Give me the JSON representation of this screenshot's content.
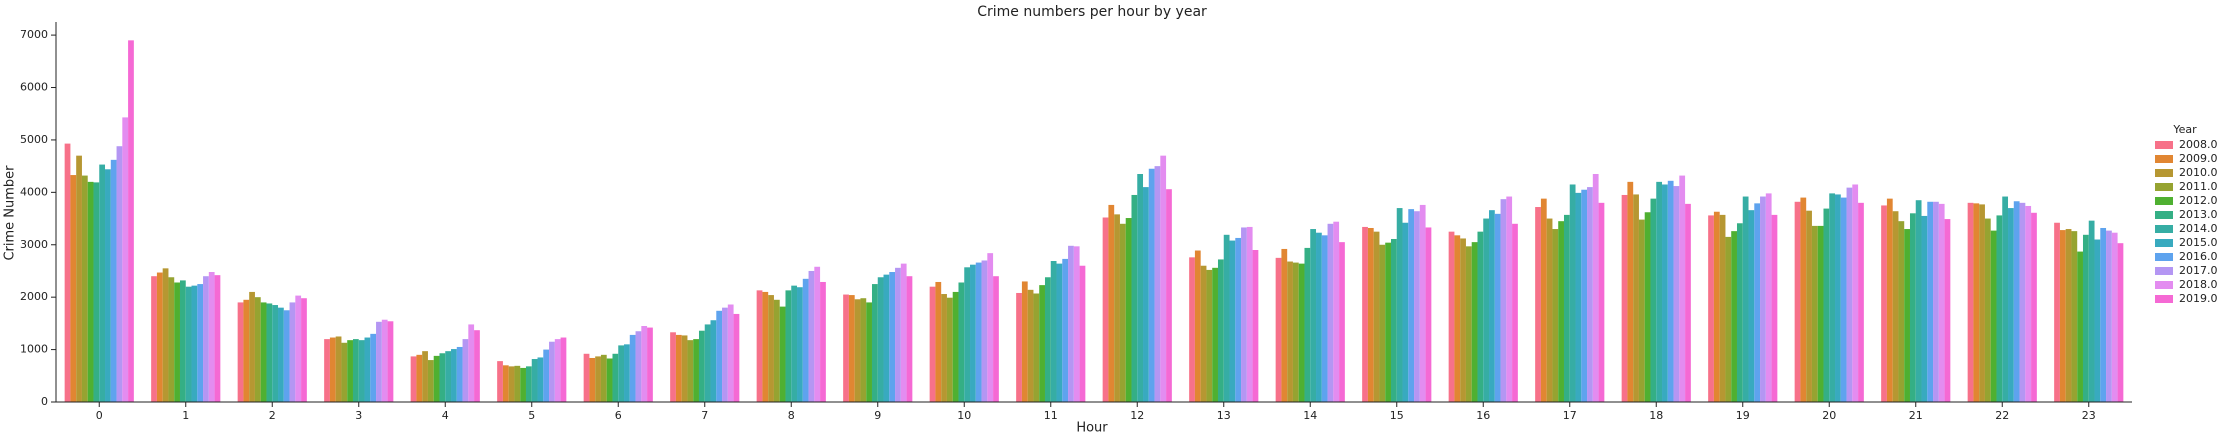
{
  "chart_data": {
    "type": "bar",
    "title": "Crime numbers per hour by year",
    "x_label": "Hour",
    "y_label": "Crime Number",
    "legend_title": "Year",
    "legend_position": "right",
    "categories": [
      "0",
      "1",
      "2",
      "3",
      "4",
      "5",
      "6",
      "7",
      "8",
      "9",
      "10",
      "11",
      "12",
      "13",
      "14",
      "15",
      "16",
      "17",
      "18",
      "19",
      "20",
      "21",
      "22",
      "23"
    ],
    "ylim": [
      0,
      7250
    ],
    "yticks": [
      0,
      1000,
      2000,
      3000,
      4000,
      5000,
      6000,
      7000
    ],
    "series": [
      {
        "name": "2008.0",
        "color": "#f77189",
        "values": [
          4930,
          2400,
          1900,
          1200,
          870,
          780,
          920,
          1330,
          2130,
          2050,
          2200,
          2080,
          3520,
          2760,
          2750,
          3340,
          3250,
          3720,
          3950,
          3560,
          3820,
          3750,
          3800,
          3420
        ]
      },
      {
        "name": "2009.0",
        "color": "#e18632",
        "values": [
          4330,
          2470,
          1950,
          1230,
          900,
          700,
          840,
          1280,
          2100,
          2040,
          2290,
          2300,
          3760,
          2890,
          2920,
          3320,
          3180,
          3880,
          4200,
          3630,
          3900,
          3880,
          3790,
          3280
        ]
      },
      {
        "name": "2010.0",
        "color": "#b69732",
        "values": [
          4700,
          2550,
          2100,
          1250,
          970,
          680,
          870,
          1270,
          2040,
          1960,
          2060,
          2140,
          3580,
          2600,
          2680,
          3250,
          3120,
          3500,
          3960,
          3570,
          3650,
          3640,
          3770,
          3300
        ]
      },
      {
        "name": "2011.0",
        "color": "#96a331",
        "values": [
          4320,
          2380,
          2000,
          1130,
          800,
          690,
          900,
          1180,
          1950,
          1980,
          1990,
          2070,
          3400,
          2520,
          2660,
          3000,
          2970,
          3300,
          3480,
          3150,
          3360,
          3450,
          3500,
          3260
        ]
      },
      {
        "name": "2012.0",
        "color": "#4fb031",
        "values": [
          4200,
          2280,
          1900,
          1180,
          880,
          650,
          830,
          1200,
          1820,
          1900,
          2100,
          2230,
          3510,
          2560,
          2640,
          3040,
          3050,
          3450,
          3620,
          3260,
          3360,
          3300,
          3270,
          2870
        ]
      },
      {
        "name": "2013.0",
        "color": "#34af85",
        "values": [
          4190,
          2320,
          1880,
          1200,
          930,
          680,
          920,
          1360,
          2130,
          2250,
          2280,
          2380,
          3950,
          2720,
          2940,
          3110,
          3250,
          3570,
          3880,
          3410,
          3690,
          3600,
          3560,
          3190
        ]
      },
      {
        "name": "2014.0",
        "color": "#36ada4",
        "values": [
          4530,
          2200,
          1850,
          1180,
          970,
          820,
          1080,
          1480,
          2220,
          2380,
          2570,
          2690,
          4350,
          3190,
          3300,
          3700,
          3500,
          4150,
          4200,
          3920,
          3980,
          3850,
          3920,
          3460
        ]
      },
      {
        "name": "2015.0",
        "color": "#38aabf",
        "values": [
          4440,
          2220,
          1800,
          1230,
          1010,
          850,
          1100,
          1560,
          2190,
          2430,
          2620,
          2640,
          4100,
          3080,
          3230,
          3420,
          3660,
          3990,
          4150,
          3660,
          3960,
          3550,
          3700,
          3100
        ]
      },
      {
        "name": "2016.0",
        "color": "#5ea3ee",
        "values": [
          4620,
          2250,
          1750,
          1300,
          1050,
          1000,
          1280,
          1740,
          2350,
          2480,
          2660,
          2730,
          4450,
          3130,
          3180,
          3680,
          3590,
          4050,
          4220,
          3790,
          3900,
          3820,
          3830,
          3320
        ]
      },
      {
        "name": "2017.0",
        "color": "#b496f3",
        "values": [
          4880,
          2400,
          1900,
          1530,
          1200,
          1150,
          1350,
          1800,
          2500,
          2560,
          2700,
          2980,
          4500,
          3330,
          3400,
          3640,
          3870,
          4100,
          4120,
          3920,
          4090,
          3820,
          3800,
          3270
        ]
      },
      {
        "name": "2018.0",
        "color": "#e38cf0",
        "values": [
          5430,
          2480,
          2030,
          1570,
          1480,
          1200,
          1450,
          1860,
          2580,
          2640,
          2840,
          2970,
          4700,
          3340,
          3440,
          3760,
          3920,
          4350,
          4320,
          3980,
          4150,
          3780,
          3740,
          3230
        ]
      },
      {
        "name": "2019.0",
        "color": "#f569d4",
        "values": [
          6900,
          2420,
          1980,
          1540,
          1370,
          1230,
          1420,
          1680,
          2290,
          2400,
          2400,
          2600,
          4060,
          2900,
          3050,
          3330,
          3400,
          3800,
          3780,
          3570,
          3800,
          3490,
          3610,
          3030
        ]
      }
    ]
  }
}
